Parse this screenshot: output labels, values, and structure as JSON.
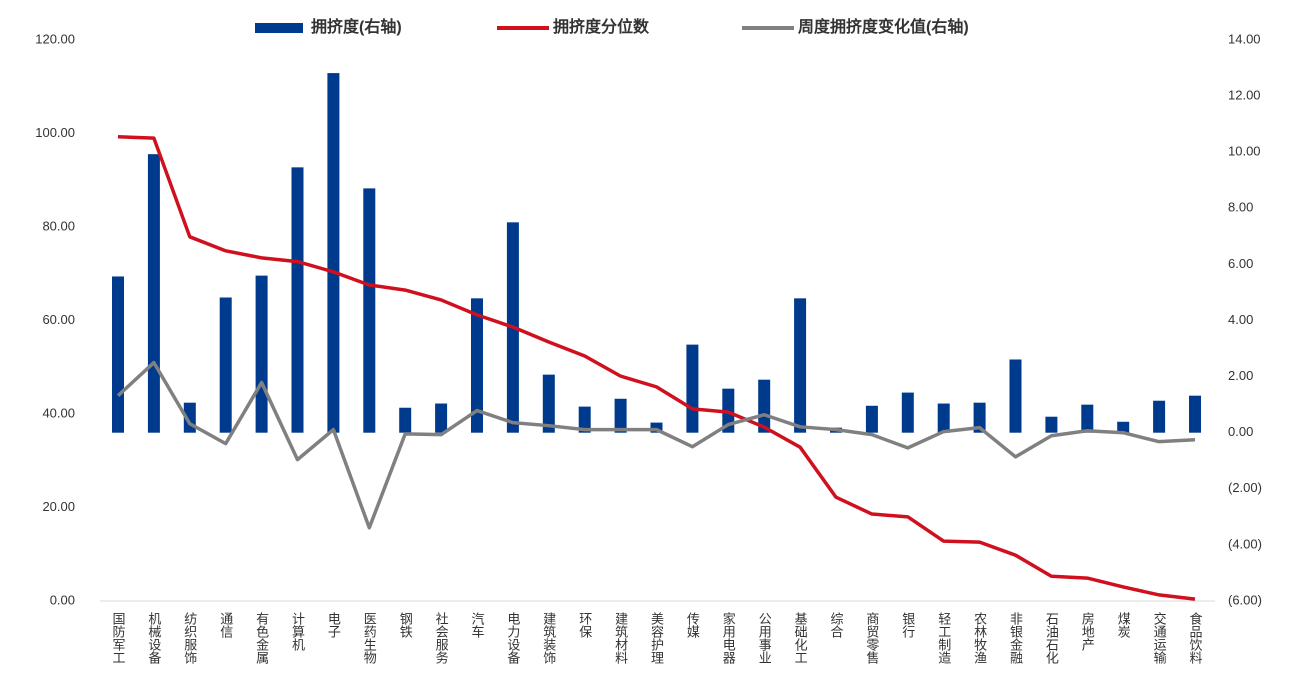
{
  "chart_data": {
    "type": "combo",
    "categories": [
      "国防军工",
      "机械设备",
      "纺织服饰",
      "通信",
      "有色金属",
      "计算机",
      "电子",
      "医药生物",
      "钢铁",
      "社会服务",
      "汽车",
      "电力设备",
      "建筑装饰",
      "环保",
      "建筑材料",
      "美容护理",
      "传媒",
      "家用电器",
      "公用事业",
      "基础化工",
      "综合",
      "商贸零售",
      "银行",
      "轻工制造",
      "农林牧渔",
      "非银金融",
      "石油石化",
      "房地产",
      "煤炭",
      "交通运输",
      "食品饮料"
    ],
    "series": [
      {
        "name": "拥挤度(右轴)",
        "kind": "bar",
        "axis": "y2",
        "color": "#003a8c",
        "values": [
          5.57,
          9.93,
          1.07,
          4.82,
          5.6,
          9.46,
          12.82,
          8.71,
          0.89,
          1.04,
          4.79,
          7.5,
          2.07,
          0.93,
          1.21,
          0.36,
          3.14,
          1.57,
          1.89,
          4.79,
          0.18,
          0.96,
          1.43,
          1.04,
          1.07,
          2.61,
          0.57,
          1.0,
          0.39,
          1.14,
          1.32
        ]
      },
      {
        "name": "拥挤度分位数",
        "kind": "line",
        "color": "#d0101e",
        "values": [
          99.3,
          99.0,
          77.9,
          74.9,
          73.4,
          72.6,
          70.4,
          67.6,
          66.5,
          64.4,
          61.2,
          58.6,
          55.4,
          52.4,
          48.1,
          45.8,
          41.1,
          40.4,
          37.2,
          32.9,
          22.2,
          18.6,
          18.0,
          12.8,
          12.6,
          9.8,
          5.3,
          4.9,
          3.0,
          1.3,
          0.4
        ]
      },
      {
        "name": "周度拥挤度变化值(右轴)",
        "kind": "line",
        "axis": "y2",
        "color": "#808080",
        "values": [
          1.32,
          2.5,
          0.32,
          -0.39,
          1.79,
          -0.96,
          0.11,
          -3.39,
          -0.04,
          -0.07,
          0.79,
          0.36,
          0.25,
          0.11,
          0.11,
          0.11,
          -0.5,
          0.29,
          0.64,
          0.21,
          0.11,
          -0.07,
          -0.54,
          0.04,
          0.18,
          -0.86,
          -0.11,
          0.07,
          0,
          -0.32,
          -0.25
        ]
      }
    ],
    "ylim": [
      0,
      120
    ],
    "yticks": [
      {
        "value": 0,
        "label": "0.00"
      },
      {
        "value": 20,
        "label": "20.00"
      },
      {
        "value": 40,
        "label": "40.00"
      },
      {
        "value": 60,
        "label": "60.00"
      },
      {
        "value": 80,
        "label": "80.00"
      },
      {
        "value": 100,
        "label": "100.00"
      },
      {
        "value": 120,
        "label": "120.00"
      }
    ],
    "y2lim": [
      -6,
      14
    ],
    "y2ticks": [
      {
        "value": -6,
        "label": "(6.00)"
      },
      {
        "value": -4,
        "label": "(4.00)"
      },
      {
        "value": -2,
        "label": "(2.00)"
      },
      {
        "value": 0,
        "label": "0.00"
      },
      {
        "value": 2,
        "label": "2.00"
      },
      {
        "value": 4,
        "label": "4.00"
      },
      {
        "value": 6,
        "label": "6.00"
      },
      {
        "value": 8,
        "label": "8.00"
      },
      {
        "value": 10,
        "label": "10.00"
      },
      {
        "value": 12,
        "label": "12.00"
      },
      {
        "value": 14,
        "label": "14.00"
      }
    ],
    "negative_tick_color": "#c00000",
    "legend": "top",
    "grid": false
  }
}
